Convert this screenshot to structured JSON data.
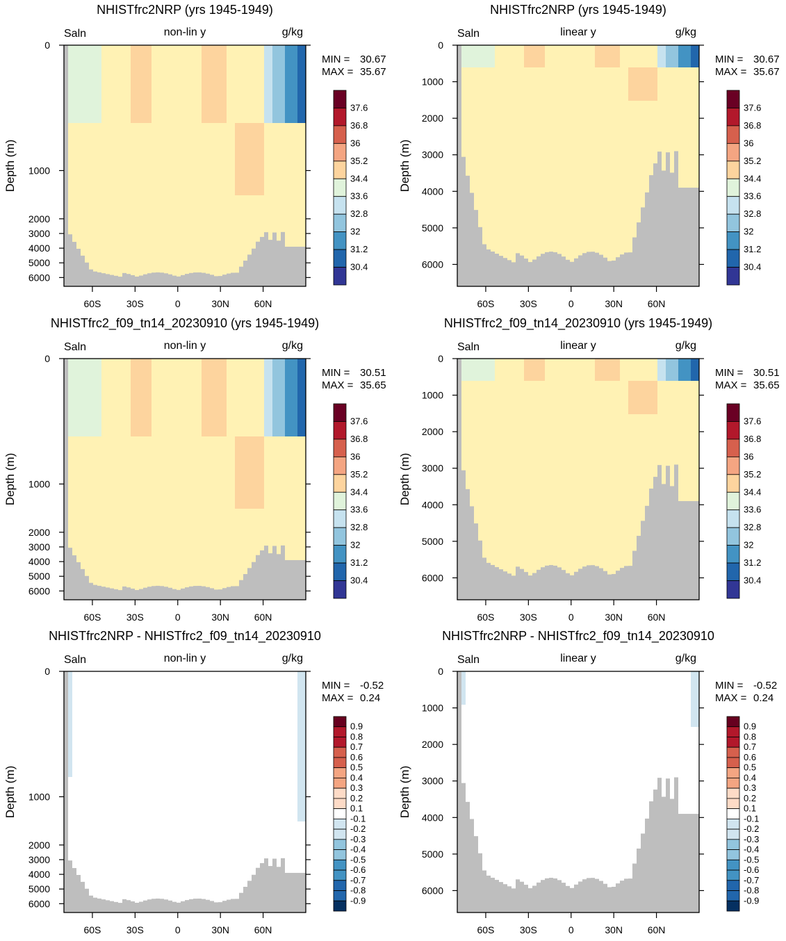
{
  "figure": {
    "variable": "Saln",
    "units": "g/kg",
    "xticks": [
      "60S",
      "30S",
      "0",
      "30N",
      "60N"
    ],
    "ylabel": "Depth (m)",
    "min_label": "MIN =",
    "max_label": "MAX ="
  },
  "chart_data": [
    {
      "type": "heatmap",
      "title": "NHISTfrc2NRP (yrs 1945-1949)",
      "variable": "Saln",
      "units": "g/kg",
      "y_mode": "non-lin y",
      "y_ticks": [
        "0",
        "1000",
        "2000",
        "3000",
        "4000",
        "5000",
        "6000"
      ],
      "min_text": "30.67",
      "max_text": "35.67",
      "colorbar": [
        "37.6",
        "36.8",
        "36",
        "35.2",
        "34.4",
        "33.6",
        "32.8",
        "32",
        "31.2",
        "30.4"
      ],
      "field": "abs"
    },
    {
      "type": "heatmap",
      "title": "NHISTfrc2NRP (yrs 1945-1949)",
      "variable": "Saln",
      "units": "g/kg",
      "y_mode": "linear y",
      "y_ticks": [
        "0",
        "1000",
        "2000",
        "3000",
        "4000",
        "5000",
        "6000"
      ],
      "min_text": "30.67",
      "max_text": "35.67",
      "colorbar": [
        "37.6",
        "36.8",
        "36",
        "35.2",
        "34.4",
        "33.6",
        "32.8",
        "32",
        "31.2",
        "30.4"
      ],
      "field": "abs"
    },
    {
      "type": "heatmap",
      "title": "NHISTfrc2_f09_tn14_20230910 (yrs 1945-1949)",
      "variable": "Saln",
      "units": "g/kg",
      "y_mode": "non-lin y",
      "y_ticks": [
        "0",
        "1000",
        "2000",
        "3000",
        "4000",
        "5000",
        "6000"
      ],
      "min_text": "30.51",
      "max_text": "35.65",
      "colorbar": [
        "37.6",
        "36.8",
        "36",
        "35.2",
        "34.4",
        "33.6",
        "32.8",
        "32",
        "31.2",
        "30.4"
      ],
      "field": "abs"
    },
    {
      "type": "heatmap",
      "title": "NHISTfrc2_f09_tn14_20230910 (yrs 1945-1949)",
      "variable": "Saln",
      "units": "g/kg",
      "y_mode": "linear y",
      "y_ticks": [
        "0",
        "1000",
        "2000",
        "3000",
        "4000",
        "5000",
        "6000"
      ],
      "min_text": "30.51",
      "max_text": "35.65",
      "colorbar": [
        "37.6",
        "36.8",
        "36",
        "35.2",
        "34.4",
        "33.6",
        "32.8",
        "32",
        "31.2",
        "30.4"
      ],
      "field": "abs"
    },
    {
      "type": "heatmap",
      "title": "NHISTfrc2NRP - NHISTfrc2_f09_tn14_20230910",
      "variable": "Saln",
      "units": "g/kg",
      "y_mode": "non-lin y",
      "y_ticks": [
        "0",
        "1000",
        "2000",
        "3000",
        "4000",
        "5000",
        "6000"
      ],
      "min_text": "-0.52",
      "max_text": "0.24",
      "colorbar": [
        "0.9",
        "0.8",
        "0.7",
        "0.6",
        "0.5",
        "0.4",
        "0.3",
        "0.2",
        "0.1",
        "-0.1",
        "-0.2",
        "-0.3",
        "-0.4",
        "-0.5",
        "-0.6",
        "-0.7",
        "-0.8",
        "-0.9"
      ],
      "field": "diff"
    },
    {
      "type": "heatmap",
      "title": "NHISTfrc2NRP - NHISTfrc2_f09_tn14_20230910",
      "variable": "Saln",
      "units": "g/kg",
      "y_mode": "linear y",
      "y_ticks": [
        "0",
        "1000",
        "2000",
        "3000",
        "4000",
        "5000",
        "6000"
      ],
      "min_text": "-0.52",
      "max_text": "0.24",
      "colorbar": [
        "0.9",
        "0.8",
        "0.7",
        "0.6",
        "0.5",
        "0.4",
        "0.3",
        "0.2",
        "0.1",
        "-0.1",
        "-0.2",
        "-0.3",
        "-0.4",
        "-0.5",
        "-0.6",
        "-0.7",
        "-0.8",
        "-0.9"
      ],
      "field": "diff"
    }
  ],
  "colors": {
    "land": "#bebebe",
    "salinity_scale": [
      "#6a0024",
      "#b2182b",
      "#d6604d",
      "#f4a582",
      "#fdd49e",
      "#fff2b4",
      "#e0f3db",
      "#c6e2ef",
      "#92c5de",
      "#4393c3",
      "#2166ac",
      "#313695"
    ],
    "diff_scale": [
      "#67001f",
      "#b2182b",
      "#d6604d",
      "#f4a582",
      "#fddbc7",
      "#ffffff",
      "#d1e5f0",
      "#92c5de",
      "#4393c3",
      "#2166ac",
      "#053061"
    ]
  }
}
